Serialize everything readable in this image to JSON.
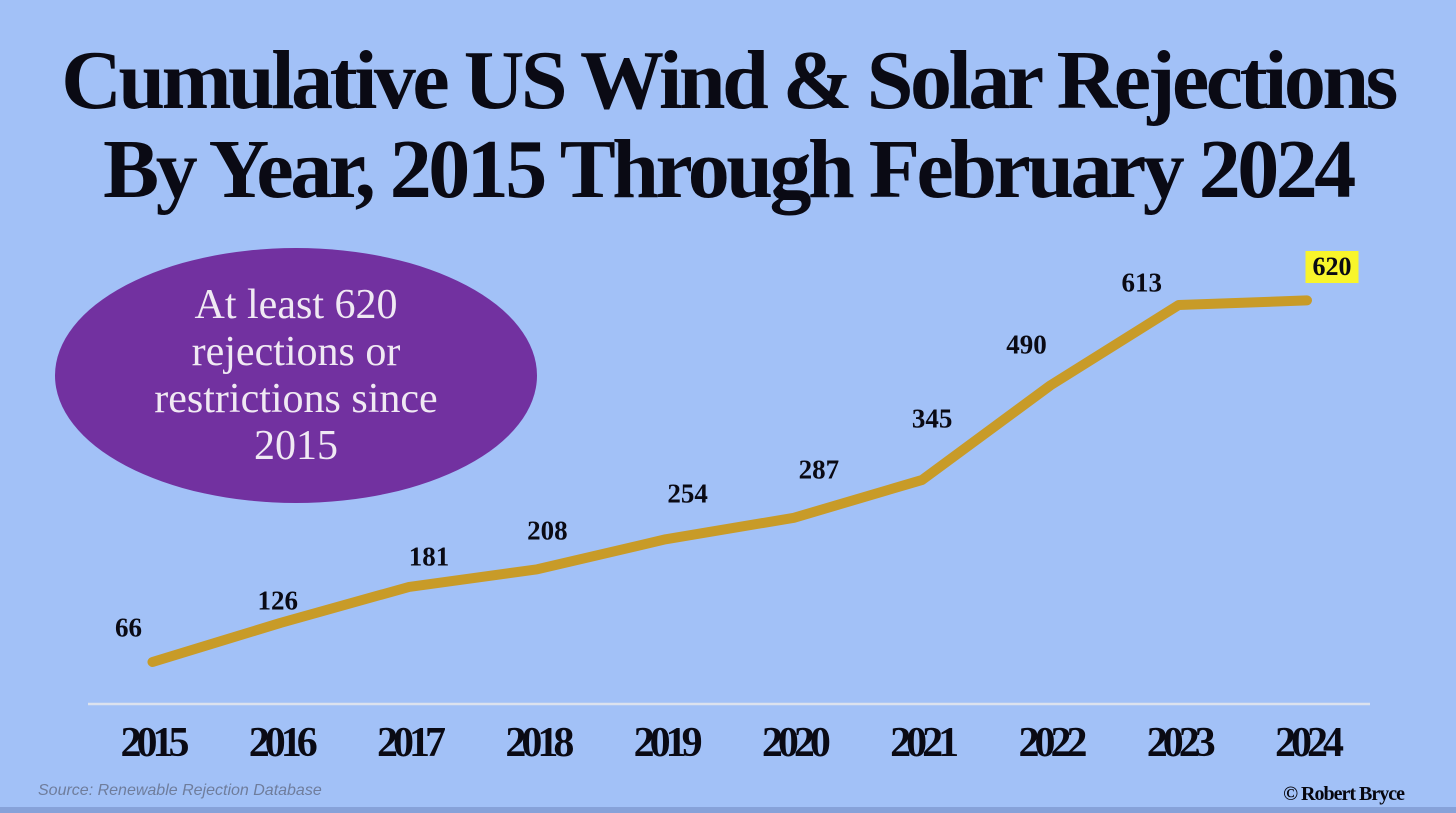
{
  "title": {
    "line1": "Cumulative US Wind & Solar Rejections",
    "line2": "By Year, 2015 Through February 2024"
  },
  "callout": {
    "lines": [
      "At least 620",
      "rejections or",
      "restrictions since",
      "2015"
    ]
  },
  "footer": {
    "source": "Source: Renewable Rejection Database",
    "copyright": "© Robert Bryce"
  },
  "colors": {
    "background": "#a2c1f7",
    "line_color": "#c89b28",
    "callout_bg": "#7231a0",
    "callout_text": "#f0e9f3",
    "highlight": "#f8f52b",
    "axis_color": "#dce2ee",
    "text_color": "#0a0a14",
    "source_color": "#6f7d9c"
  },
  "chart_data": {
    "type": "line",
    "title": "Cumulative US Wind & Solar Rejections By Year, 2015 Through February 2024",
    "categories": [
      "2015",
      "2016",
      "2017",
      "2018",
      "2019",
      "2020",
      "2021",
      "2022",
      "2023",
      "2024"
    ],
    "values": [
      66,
      126,
      181,
      208,
      254,
      287,
      345,
      490,
      613,
      620
    ],
    "series_name": "Cumulative wind & solar rejections",
    "xlabel": "",
    "ylabel": "",
    "ylim": [
      0,
      700
    ],
    "grid": false,
    "legend": false,
    "data_labels": true,
    "highlighted_label": "620",
    "line_color": "#c89b28",
    "annotation": "At least 620 rejections or restrictions since 2015"
  }
}
